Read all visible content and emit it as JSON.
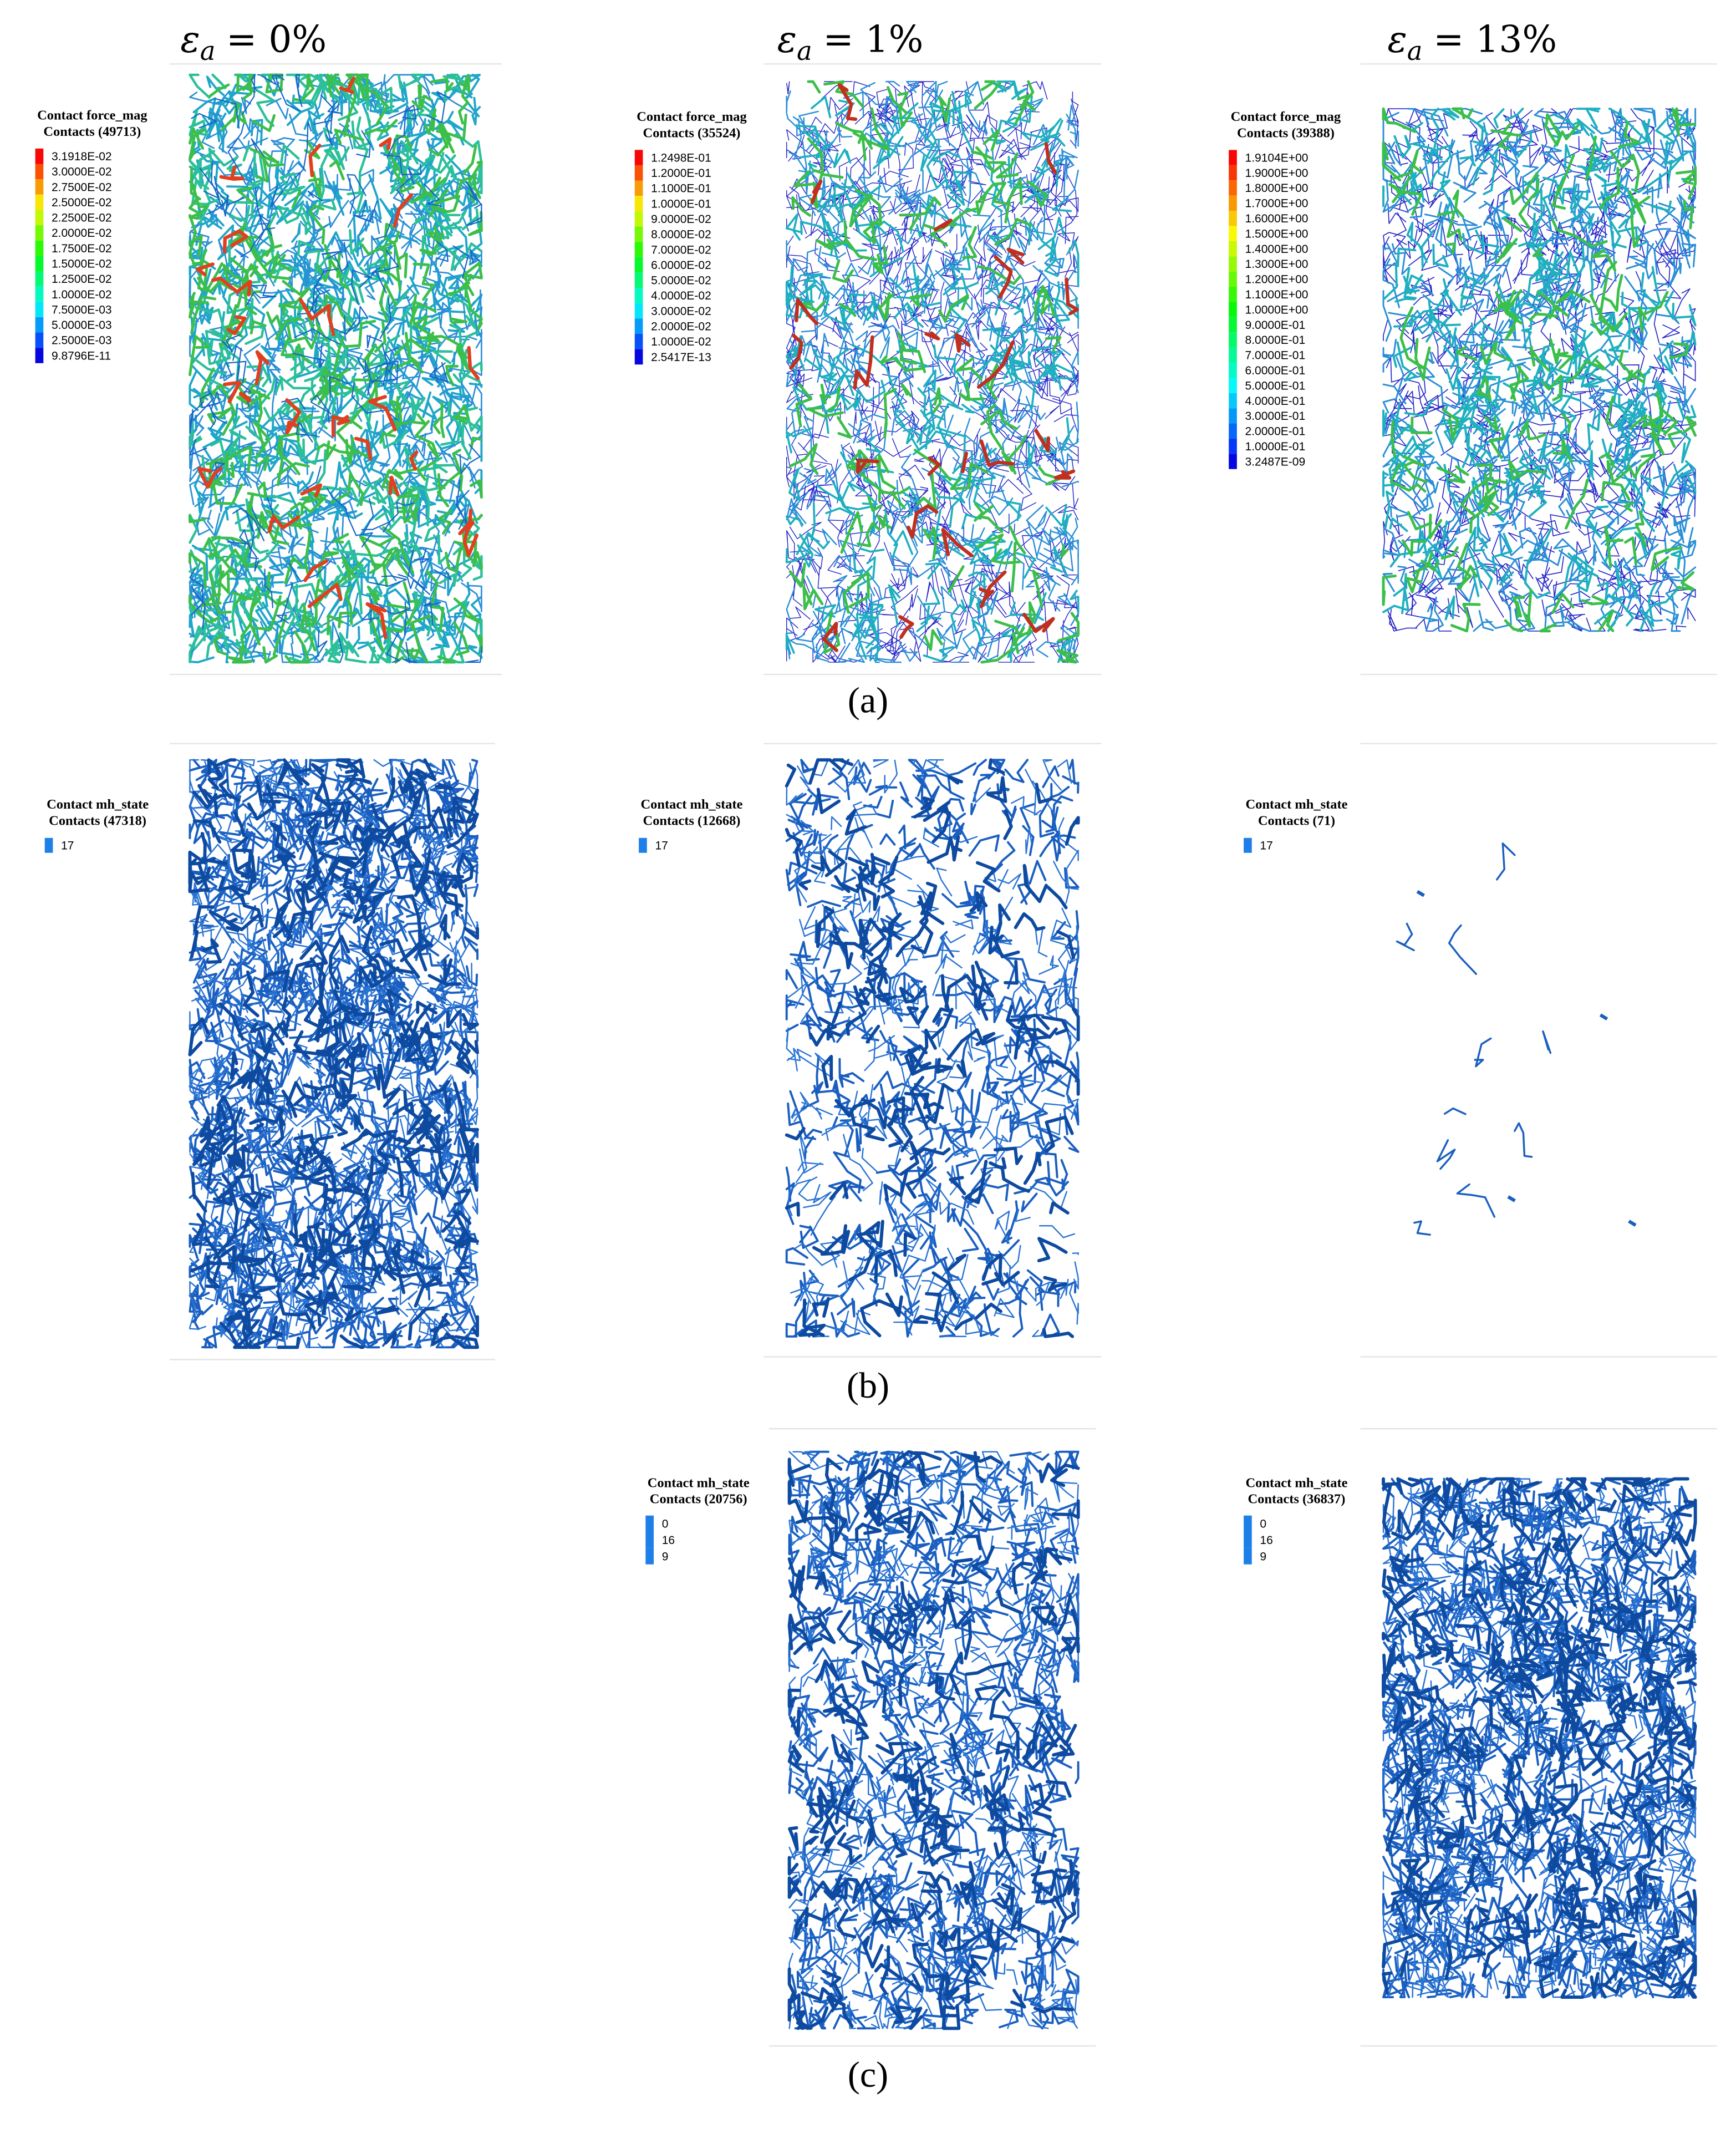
{
  "header": {
    "columns": [
      {
        "symbol": "ε",
        "subscript": "a",
        "equation": "= 0%"
      },
      {
        "symbol": "ε",
        "subscript": "a",
        "equation": "= 1%"
      },
      {
        "symbol": "ε",
        "subscript": "a",
        "equation": "= 13%"
      }
    ]
  },
  "rows": [
    {
      "label": "(a)",
      "plots": [
        {
          "legend": {
            "title": "Contact force_mag",
            "count": "Contacts (49713)",
            "items": [
              "3.1918E-02",
              "3.0000E-02",
              "2.7500E-02",
              "2.5000E-02",
              "2.2500E-02",
              "2.0000E-02",
              "1.7500E-02",
              "1.5000E-02",
              "1.2500E-02",
              "1.0000E-02",
              "7.5000E-03",
              "5.0000E-03",
              "2.5000E-03",
              "9.8796E-11"
            ]
          }
        },
        {
          "legend": {
            "title": "Contact force_mag",
            "count": "Contacts (35524)",
            "items": [
              "1.2498E-01",
              "1.2000E-01",
              "1.1000E-01",
              "1.0000E-01",
              "9.0000E-02",
              "8.0000E-02",
              "7.0000E-02",
              "6.0000E-02",
              "5.0000E-02",
              "4.0000E-02",
              "3.0000E-02",
              "2.0000E-02",
              "1.0000E-02",
              "2.5417E-13"
            ]
          }
        },
        {
          "legend": {
            "title": "Contact force_mag",
            "count": "Contacts (39388)",
            "items": [
              "1.9104E+00",
              "1.9000E+00",
              "1.8000E+00",
              "1.7000E+00",
              "1.6000E+00",
              "1.5000E+00",
              "1.4000E+00",
              "1.3000E+00",
              "1.2000E+00",
              "1.1000E+00",
              "1.0000E+00",
              "9.0000E-01",
              "8.0000E-01",
              "7.0000E-01",
              "6.0000E-01",
              "5.0000E-01",
              "4.0000E-01",
              "3.0000E-01",
              "2.0000E-01",
              "1.0000E-01",
              "3.2487E-09"
            ]
          }
        }
      ]
    },
    {
      "label": "(b)",
      "plots": [
        {
          "legend": {
            "title": "Contact mh_state",
            "count": "Contacts (47318)",
            "items": [
              "17"
            ]
          }
        },
        {
          "legend": {
            "title": "Contact mh_state",
            "count": "Contacts (12668)",
            "items": [
              "17"
            ]
          }
        },
        {
          "legend": {
            "title": "Contact mh_state",
            "count": "Contacts (71)",
            "items": [
              "17"
            ]
          }
        }
      ]
    },
    {
      "label": "(c)",
      "plots": [
        null,
        {
          "legend": {
            "title": "Contact mh_state",
            "count": "Contacts (20756)",
            "items": [
              "0",
              "16",
              "9"
            ]
          }
        },
        {
          "legend": {
            "title": "Contact mh_state",
            "count": "Contacts (36837)",
            "items": [
              "0",
              "16",
              "9"
            ]
          }
        }
      ]
    }
  ]
}
